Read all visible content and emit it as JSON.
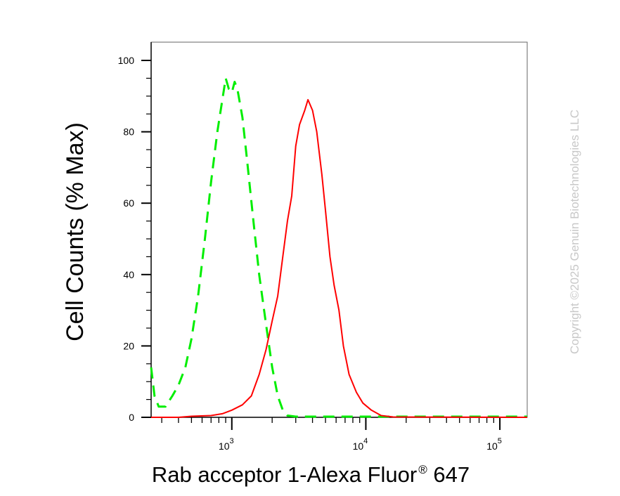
{
  "chart_data": {
    "type": "line",
    "xlabel": "Rab acceptor 1-Alexa Fluor",
    "xlabel_superscript": "®",
    "xlabel_suffix": " 647",
    "ylabel": "Cell Counts (% Max)",
    "x_scale": "log",
    "xlim": [
      250,
      160000
    ],
    "ylim": [
      0,
      100
    ],
    "x_ticks": [
      {
        "value": 1000,
        "base": "10",
        "exp": "3"
      },
      {
        "value": 10000,
        "base": "10",
        "exp": "4"
      },
      {
        "value": 100000,
        "base": "10",
        "exp": "5"
      }
    ],
    "y_ticks": [
      {
        "value": 0,
        "label": "0"
      },
      {
        "value": 20,
        "label": "20"
      },
      {
        "value": 40,
        "label": "40"
      },
      {
        "value": 60,
        "label": "60"
      },
      {
        "value": 80,
        "label": "80"
      },
      {
        "value": 100,
        "label": "100"
      }
    ],
    "grid": false,
    "series": [
      {
        "color": "#00ee00",
        "style": "dashed",
        "points": [
          [
            250,
            14
          ],
          [
            265,
            6
          ],
          [
            285,
            3
          ],
          [
            320,
            3
          ],
          [
            360,
            6
          ],
          [
            400,
            9
          ],
          [
            450,
            14
          ],
          [
            500,
            22
          ],
          [
            560,
            34
          ],
          [
            630,
            50
          ],
          [
            700,
            66
          ],
          [
            780,
            80
          ],
          [
            850,
            89
          ],
          [
            900,
            95
          ],
          [
            950,
            92
          ],
          [
            1000,
            91
          ],
          [
            1050,
            94
          ],
          [
            1100,
            92
          ],
          [
            1200,
            84
          ],
          [
            1300,
            72
          ],
          [
            1450,
            55
          ],
          [
            1600,
            40
          ],
          [
            1800,
            26
          ],
          [
            2000,
            14
          ],
          [
            2200,
            6
          ],
          [
            2400,
            2
          ],
          [
            2600,
            0.5
          ],
          [
            3000,
            0.2
          ],
          [
            5000,
            0.2
          ],
          [
            20000,
            0.2
          ],
          [
            160000,
            0.2
          ]
        ]
      },
      {
        "color": "#ff0000",
        "style": "solid",
        "points": [
          [
            250,
            0
          ],
          [
            400,
            0
          ],
          [
            500,
            0.3
          ],
          [
            700,
            0.5
          ],
          [
            850,
            1
          ],
          [
            1000,
            2
          ],
          [
            1200,
            3.5
          ],
          [
            1400,
            6
          ],
          [
            1600,
            12
          ],
          [
            1800,
            19
          ],
          [
            2000,
            27
          ],
          [
            2200,
            34
          ],
          [
            2400,
            45
          ],
          [
            2600,
            55
          ],
          [
            2800,
            62
          ],
          [
            3000,
            76
          ],
          [
            3200,
            82
          ],
          [
            3500,
            86
          ],
          [
            3700,
            89
          ],
          [
            4000,
            86
          ],
          [
            4300,
            80
          ],
          [
            4700,
            68
          ],
          [
            5000,
            58
          ],
          [
            5400,
            45
          ],
          [
            5800,
            37
          ],
          [
            6300,
            30
          ],
          [
            6800,
            20
          ],
          [
            7500,
            12
          ],
          [
            8500,
            7
          ],
          [
            9500,
            4
          ],
          [
            11000,
            2
          ],
          [
            13000,
            0.5
          ],
          [
            16000,
            0.1
          ],
          [
            160000,
            0
          ]
        ]
      }
    ]
  },
  "watermark": "Copyright ©2025 Genuin Biotechnologies LLC"
}
